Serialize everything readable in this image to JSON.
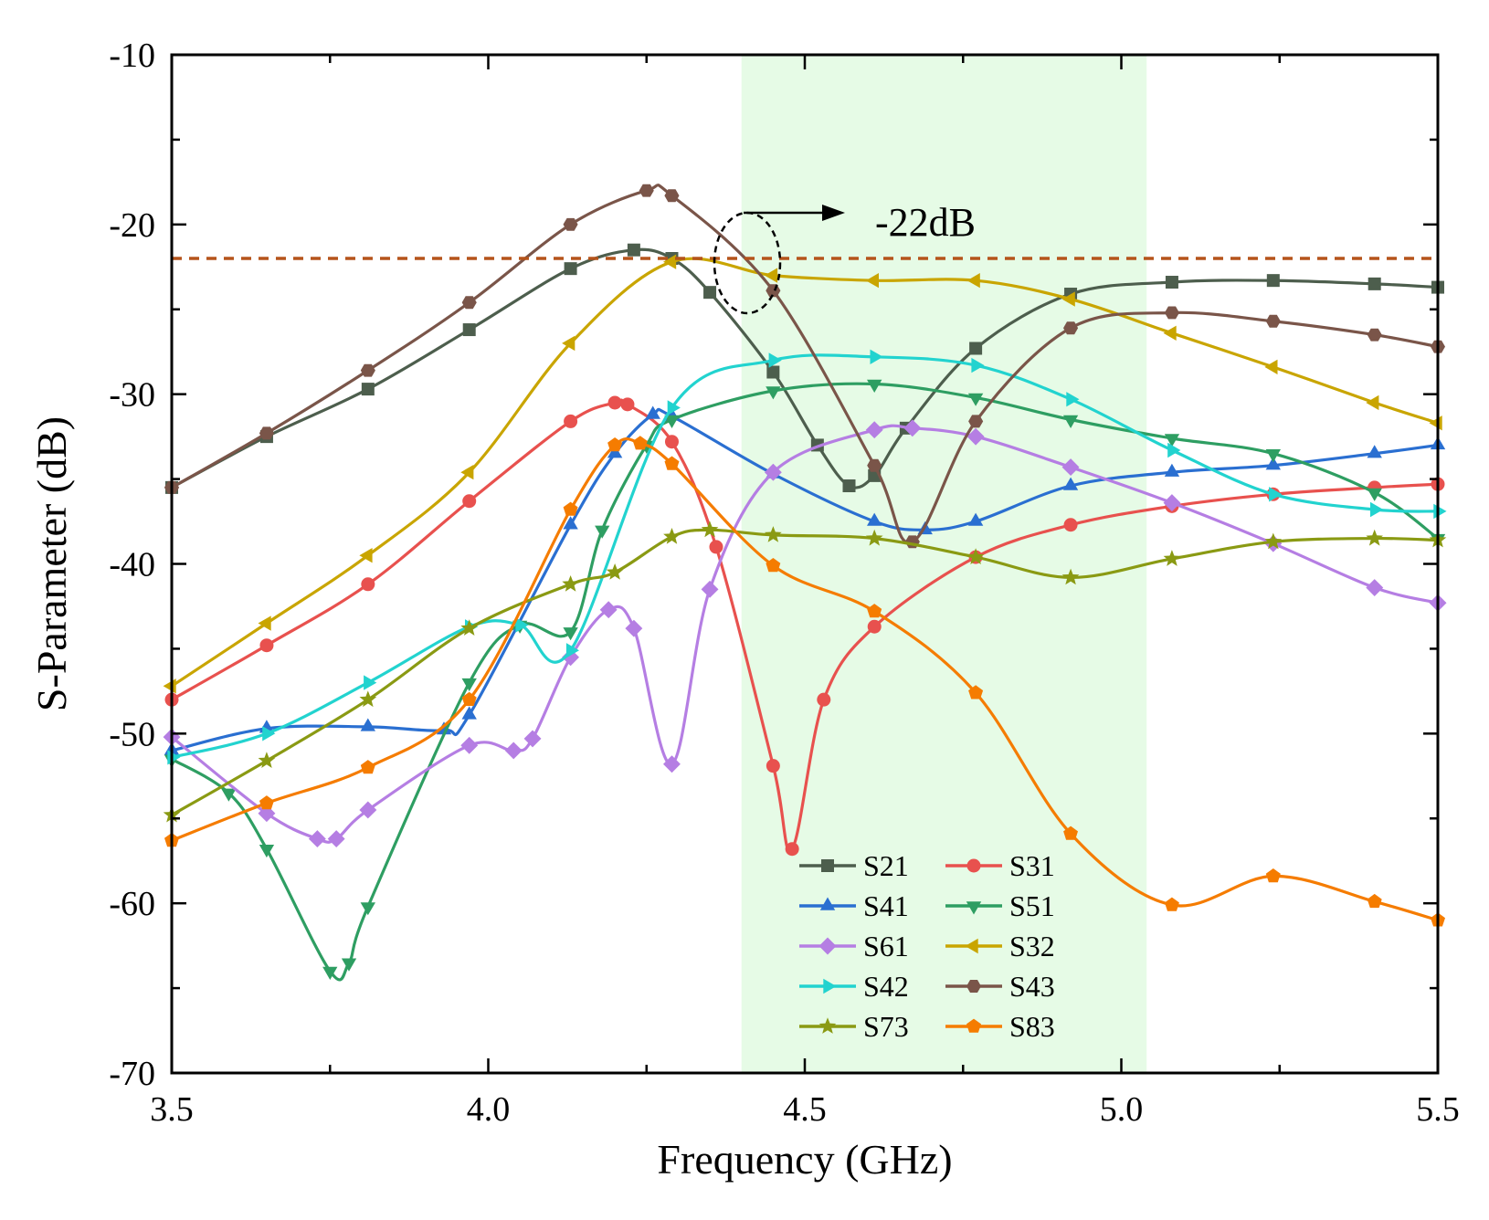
{
  "chart_data": {
    "type": "line",
    "title": "",
    "xlabel": "Frequency (GHz)",
    "ylabel": "S-Parameter (dB)",
    "xlim": [
      3.5,
      5.5
    ],
    "ylim": [
      -70,
      -10
    ],
    "xticks": [
      3.5,
      4.0,
      4.5,
      5.0,
      5.5
    ],
    "xtick_labels": [
      "3.5",
      "4.0",
      "4.5",
      "5.0",
      "5.5"
    ],
    "yticks": [
      -10,
      -20,
      -30,
      -40,
      -50,
      -60,
      -70
    ],
    "ytick_labels": [
      "-10",
      "-20",
      "-30",
      "-40",
      "-50",
      "-60",
      "-70"
    ],
    "highlight_band": {
      "x_start": 4.4,
      "x_end": 5.04,
      "color": "#e6fbe6"
    },
    "reference_line": {
      "y": -22,
      "color": "#b5541b",
      "style": "dashed"
    },
    "annotation": {
      "text": "-22dB",
      "x": 4.62,
      "y": -20
    },
    "legend_position": "bottom-center",
    "series": [
      {
        "name": "S21",
        "color": "#4d5e4d",
        "marker": "square",
        "x": [
          3.5,
          3.65,
          3.81,
          3.97,
          4.13,
          4.23,
          4.29,
          4.35,
          4.45,
          4.52,
          4.57,
          4.61,
          4.66,
          4.77,
          4.92,
          5.08,
          5.24,
          5.4,
          5.5
        ],
        "y": [
          -35.5,
          -32.5,
          -29.7,
          -26.2,
          -22.6,
          -21.5,
          -22.0,
          -24.0,
          -28.7,
          -33.0,
          -35.4,
          -34.8,
          -32.0,
          -27.3,
          -24.1,
          -23.4,
          -23.3,
          -23.5,
          -23.7
        ]
      },
      {
        "name": "S31",
        "color": "#e8514e",
        "marker": "circle",
        "x": [
          3.5,
          3.65,
          3.81,
          3.97,
          4.13,
          4.2,
          4.22,
          4.29,
          4.36,
          4.45,
          4.48,
          4.53,
          4.61,
          4.77,
          4.92,
          5.08,
          5.24,
          5.4,
          5.5
        ],
        "y": [
          -48.0,
          -44.8,
          -41.2,
          -36.3,
          -31.6,
          -30.5,
          -30.6,
          -32.8,
          -39.0,
          -51.9,
          -56.8,
          -48.0,
          -43.7,
          -39.6,
          -37.7,
          -36.6,
          -35.9,
          -35.5,
          -35.3
        ]
      },
      {
        "name": "S41",
        "color": "#2a6fd1",
        "marker": "triangle-up",
        "x": [
          3.5,
          3.65,
          3.81,
          3.93,
          3.97,
          4.13,
          4.2,
          4.26,
          4.29,
          4.45,
          4.61,
          4.69,
          4.77,
          4.92,
          5.08,
          5.24,
          5.4,
          5.5
        ],
        "y": [
          -51.0,
          -49.7,
          -49.6,
          -49.8,
          -48.9,
          -37.7,
          -33.5,
          -31.2,
          -31.3,
          -34.7,
          -37.5,
          -38.0,
          -37.5,
          -35.4,
          -34.6,
          -34.2,
          -33.5,
          -33.0
        ]
      },
      {
        "name": "S51",
        "color": "#2e9e62",
        "marker": "triangle-down",
        "x": [
          3.5,
          3.59,
          3.65,
          3.75,
          3.78,
          3.81,
          3.97,
          4.05,
          4.13,
          4.18,
          4.25,
          4.29,
          4.45,
          4.61,
          4.77,
          4.92,
          5.08,
          5.24,
          5.4,
          5.5
        ],
        "y": [
          -51.5,
          -53.5,
          -56.8,
          -64.0,
          -63.5,
          -60.2,
          -47.0,
          -43.6,
          -44.0,
          -38.0,
          -33.0,
          -31.5,
          -29.8,
          -29.4,
          -30.2,
          -31.5,
          -32.6,
          -33.5,
          -35.8,
          -38.5
        ]
      },
      {
        "name": "S61",
        "color": "#b57ee3",
        "marker": "diamond",
        "x": [
          3.5,
          3.65,
          3.73,
          3.76,
          3.81,
          3.97,
          4.04,
          4.07,
          4.13,
          4.19,
          4.23,
          4.29,
          4.35,
          4.45,
          4.61,
          4.67,
          4.77,
          4.92,
          5.08,
          5.24,
          5.4,
          5.5
        ],
        "y": [
          -50.2,
          -54.7,
          -56.2,
          -56.2,
          -54.5,
          -50.7,
          -51.0,
          -50.3,
          -45.5,
          -42.7,
          -43.8,
          -51.8,
          -41.5,
          -34.6,
          -32.1,
          -32.0,
          -32.5,
          -34.3,
          -36.4,
          -38.8,
          -41.4,
          -42.3
        ]
      },
      {
        "name": "S32",
        "color": "#c9a500",
        "marker": "triangle-left",
        "x": [
          3.5,
          3.65,
          3.81,
          3.97,
          4.13,
          4.29,
          4.45,
          4.61,
          4.77,
          4.92,
          5.08,
          5.24,
          5.4,
          5.5
        ],
        "y": [
          -47.2,
          -43.5,
          -39.5,
          -34.6,
          -27.0,
          -22.2,
          -23.0,
          -23.3,
          -23.3,
          -24.4,
          -26.4,
          -28.4,
          -30.5,
          -31.7
        ]
      },
      {
        "name": "S42",
        "color": "#22d3cf",
        "marker": "triangle-right",
        "x": [
          3.5,
          3.65,
          3.81,
          3.97,
          4.05,
          4.13,
          4.29,
          4.45,
          4.61,
          4.77,
          4.92,
          5.08,
          5.24,
          5.4,
          5.5
        ],
        "y": [
          -51.4,
          -50.0,
          -47.0,
          -43.7,
          -43.6,
          -45.1,
          -30.8,
          -28.0,
          -27.8,
          -28.3,
          -30.3,
          -33.3,
          -35.9,
          -36.8,
          -36.9
        ]
      },
      {
        "name": "S43",
        "color": "#7a5549",
        "marker": "hexagon",
        "x": [
          3.5,
          3.65,
          3.81,
          3.97,
          4.13,
          4.25,
          4.29,
          4.45,
          4.61,
          4.67,
          4.77,
          4.92,
          5.08,
          5.24,
          5.4,
          5.5
        ],
        "y": [
          -35.5,
          -32.3,
          -28.6,
          -24.6,
          -20.0,
          -18.0,
          -18.3,
          -23.9,
          -34.2,
          -38.7,
          -31.6,
          -26.1,
          -25.2,
          -25.7,
          -26.5,
          -27.2
        ]
      },
      {
        "name": "S73",
        "color": "#8a9a13",
        "marker": "star",
        "x": [
          3.5,
          3.65,
          3.81,
          3.97,
          4.13,
          4.2,
          4.29,
          4.35,
          4.45,
          4.61,
          4.77,
          4.92,
          5.08,
          5.24,
          5.4,
          5.5
        ],
        "y": [
          -54.8,
          -51.6,
          -48.0,
          -43.8,
          -41.2,
          -40.5,
          -38.4,
          -38.0,
          -38.3,
          -38.5,
          -39.6,
          -40.8,
          -39.7,
          -38.7,
          -38.5,
          -38.6
        ]
      },
      {
        "name": "S83",
        "color": "#f57c00",
        "marker": "pentagon",
        "x": [
          3.5,
          3.65,
          3.81,
          3.97,
          4.13,
          4.2,
          4.24,
          4.29,
          4.45,
          4.61,
          4.77,
          4.92,
          5.08,
          5.24,
          5.4,
          5.5
        ],
        "y": [
          -56.3,
          -54.1,
          -52.0,
          -48.0,
          -36.8,
          -33.0,
          -32.9,
          -34.1,
          -40.1,
          -42.8,
          -47.6,
          -55.9,
          -60.1,
          -58.4,
          -59.9,
          -61.0
        ]
      }
    ]
  }
}
